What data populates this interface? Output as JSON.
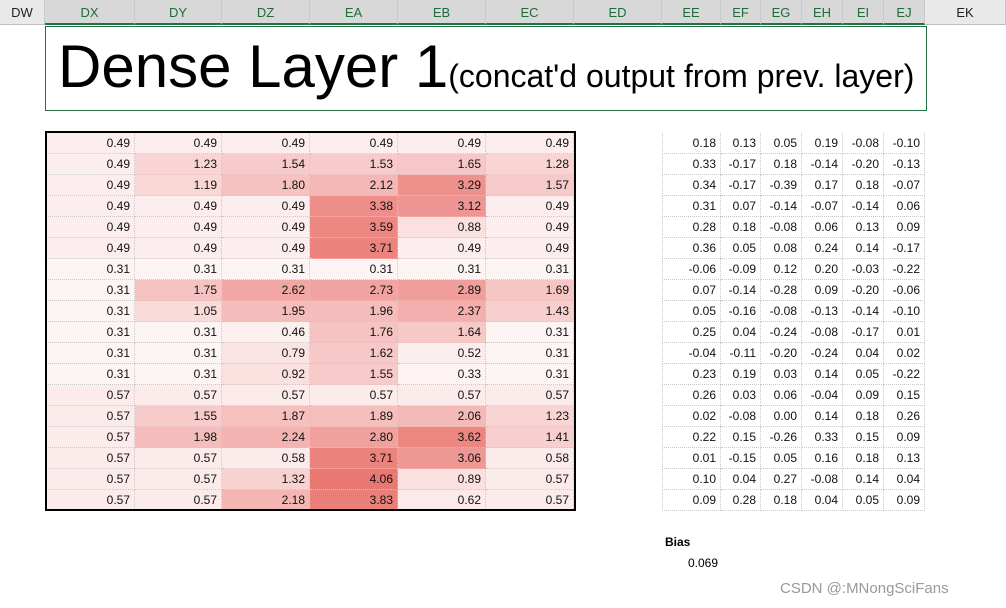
{
  "column_headers": [
    "DW",
    "DX",
    "DY",
    "DZ",
    "EA",
    "EB",
    "EC",
    "ED",
    "EE",
    "EF",
    "EG",
    "EH",
    "EI",
    "EJ",
    "EK"
  ],
  "title": {
    "main": "Dense Layer 1",
    "sub": "(concat'd output from prev. layer)"
  },
  "left_table": {
    "rows": [
      [
        "0.49",
        "0.49",
        "0.49",
        "0.49",
        "0.49",
        "0.49"
      ],
      [
        "0.49",
        "1.23",
        "1.54",
        "1.53",
        "1.65",
        "1.28"
      ],
      [
        "0.49",
        "1.19",
        "1.80",
        "2.12",
        "3.29",
        "1.57"
      ],
      [
        "0.49",
        "0.49",
        "0.49",
        "3.38",
        "3.12",
        "0.49"
      ],
      [
        "0.49",
        "0.49",
        "0.49",
        "3.59",
        "0.88",
        "0.49"
      ],
      [
        "0.49",
        "0.49",
        "0.49",
        "3.71",
        "0.49",
        "0.49"
      ],
      [
        "0.31",
        "0.31",
        "0.31",
        "0.31",
        "0.31",
        "0.31"
      ],
      [
        "0.31",
        "1.75",
        "2.62",
        "2.73",
        "2.89",
        "1.69"
      ],
      [
        "0.31",
        "1.05",
        "1.95",
        "1.96",
        "2.37",
        "1.43"
      ],
      [
        "0.31",
        "0.31",
        "0.46",
        "1.76",
        "1.64",
        "0.31"
      ],
      [
        "0.31",
        "0.31",
        "0.79",
        "1.62",
        "0.52",
        "0.31"
      ],
      [
        "0.31",
        "0.31",
        "0.92",
        "1.55",
        "0.33",
        "0.31"
      ],
      [
        "0.57",
        "0.57",
        "0.57",
        "0.57",
        "0.57",
        "0.57"
      ],
      [
        "0.57",
        "1.55",
        "1.87",
        "1.89",
        "2.06",
        "1.23"
      ],
      [
        "0.57",
        "1.98",
        "2.24",
        "2.80",
        "3.62",
        "1.41"
      ],
      [
        "0.57",
        "0.57",
        "0.58",
        "3.71",
        "3.06",
        "0.58"
      ],
      [
        "0.57",
        "0.57",
        "1.32",
        "4.06",
        "0.89",
        "0.57"
      ],
      [
        "0.57",
        "0.57",
        "2.18",
        "3.83",
        "0.62",
        "0.57"
      ]
    ]
  },
  "right_table": {
    "rows": [
      [
        "0.18",
        "0.13",
        "0.05",
        "0.19",
        "-0.08",
        "-0.10"
      ],
      [
        "0.33",
        "-0.17",
        "0.18",
        "-0.14",
        "-0.20",
        "-0.13"
      ],
      [
        "0.34",
        "-0.17",
        "-0.39",
        "0.17",
        "0.18",
        "-0.07"
      ],
      [
        "0.31",
        "0.07",
        "-0.14",
        "-0.07",
        "-0.14",
        "0.06"
      ],
      [
        "0.28",
        "0.18",
        "-0.08",
        "0.06",
        "0.13",
        "0.09"
      ],
      [
        "0.36",
        "0.05",
        "0.08",
        "0.24",
        "0.14",
        "-0.17"
      ],
      [
        "-0.06",
        "-0.09",
        "0.12",
        "0.20",
        "-0.03",
        "-0.22"
      ],
      [
        "0.07",
        "-0.14",
        "-0.28",
        "0.09",
        "-0.20",
        "-0.06"
      ],
      [
        "0.05",
        "-0.16",
        "-0.08",
        "-0.13",
        "-0.14",
        "-0.10"
      ],
      [
        "0.25",
        "0.04",
        "-0.24",
        "-0.08",
        "-0.17",
        "0.01"
      ],
      [
        "-0.04",
        "-0.11",
        "-0.20",
        "-0.24",
        "0.04",
        "0.02"
      ],
      [
        "0.23",
        "0.19",
        "0.03",
        "0.14",
        "0.05",
        "-0.22"
      ],
      [
        "0.26",
        "0.03",
        "0.06",
        "-0.04",
        "0.09",
        "0.15"
      ],
      [
        "0.02",
        "-0.08",
        "0.00",
        "0.14",
        "0.18",
        "0.26"
      ],
      [
        "0.22",
        "0.15",
        "-0.26",
        "0.33",
        "0.15",
        "0.09"
      ],
      [
        "0.01",
        "-0.15",
        "0.05",
        "0.16",
        "0.18",
        "0.13"
      ],
      [
        "0.10",
        "0.04",
        "0.27",
        "-0.08",
        "0.14",
        "0.04"
      ],
      [
        "0.09",
        "0.28",
        "0.18",
        "0.04",
        "0.05",
        "0.09"
      ]
    ]
  },
  "bias": {
    "label": "Bias",
    "value": "0.069"
  },
  "watermark": "CSDN @:MNongSciFans"
}
